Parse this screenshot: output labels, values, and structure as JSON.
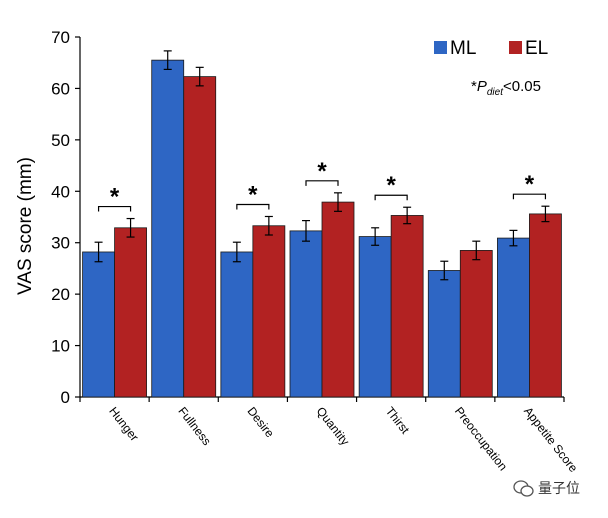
{
  "chart_data": {
    "type": "bar",
    "title": "",
    "xlabel": "",
    "ylabel": "VAS score (mm)",
    "ylim": [
      0,
      70
    ],
    "yticks": [
      "0",
      "10",
      "20",
      "30",
      "40",
      "50",
      "60",
      "70"
    ],
    "categories": [
      "Hunger",
      "Fullness",
      "Desire",
      "Quantity",
      "Thirst",
      "Preoccupation",
      "Appetite Score"
    ],
    "series": [
      {
        "name": "ML",
        "color": "#2E66C4",
        "values": [
          28.2,
          65.5,
          28.2,
          32.3,
          31.2,
          24.6,
          30.9
        ],
        "errors": [
          1.9,
          1.8,
          1.9,
          2.0,
          1.7,
          1.8,
          1.5
        ]
      },
      {
        "name": "EL",
        "color": "#B22222",
        "values": [
          32.9,
          62.3,
          33.3,
          37.9,
          35.3,
          28.5,
          35.6
        ],
        "errors": [
          1.8,
          1.8,
          1.8,
          1.8,
          1.6,
          1.8,
          1.5
        ]
      }
    ],
    "significant": [
      true,
      false,
      true,
      true,
      true,
      false,
      true
    ],
    "star_label": "*",
    "note": {
      "prefix": "*",
      "symbol": "P",
      "subscript": "diet",
      "suffix": "<0.05"
    },
    "legend_position": "top-right",
    "grid": false
  },
  "watermark": {
    "text": "量子位",
    "icon": "wechat-icon"
  }
}
